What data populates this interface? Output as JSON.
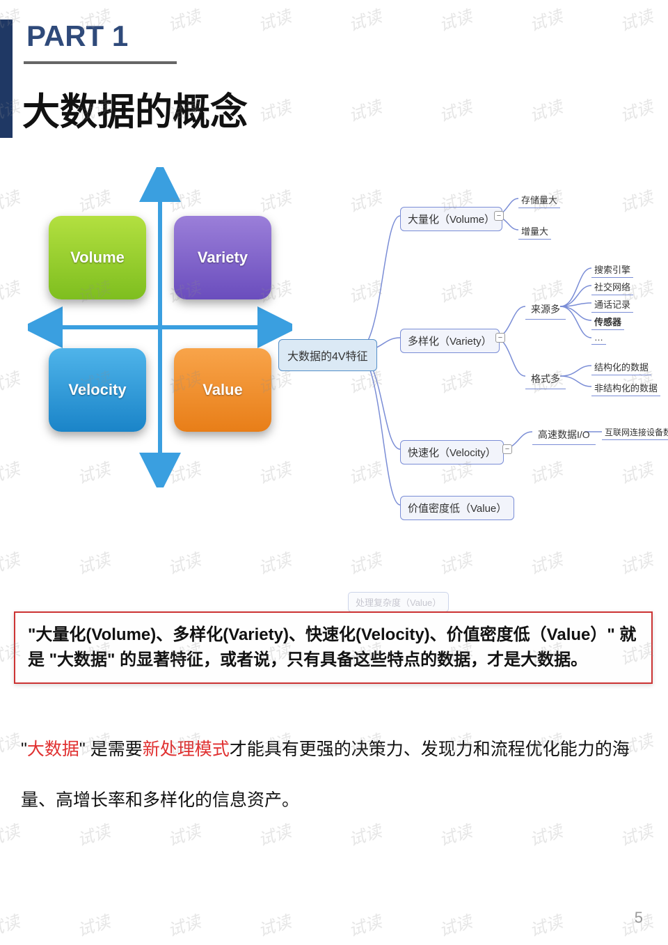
{
  "page": {
    "part_label": "PART 1",
    "title": "大数据的概念",
    "page_number": "5",
    "watermark_text": "试读",
    "colors": {
      "accent_bar": "#1f3864",
      "part_text": "#2f4a7a",
      "arrow": "#3a9fe0",
      "summary_border": "#cc3333",
      "red_text": "#e03030",
      "node_border": "#7a8dd6"
    }
  },
  "quadrant": {
    "boxes": {
      "top_left": {
        "label": "Volume",
        "color": "#7ebe1f"
      },
      "top_right": {
        "label": "Variety",
        "color": "#6a4dbd"
      },
      "bot_left": {
        "label": "Velocity",
        "color": "#1a84c8"
      },
      "bot_right": {
        "label": "Value",
        "color": "#e87e18"
      }
    }
  },
  "mindmap": {
    "root": "大数据的4V特征",
    "branches": [
      {
        "label": "大量化（Volume）",
        "children": [
          "存储量大",
          "增量大"
        ]
      },
      {
        "label": "多样化（Variety）",
        "sub": [
          {
            "label": "来源多",
            "children": [
              "搜索引擎",
              "社交网络",
              "通话记录",
              "传感器",
              "…"
            ]
          },
          {
            "label": "格式多",
            "children": [
              "结构化的数据",
              "非结构化的数据"
            ]
          }
        ]
      },
      {
        "label": "快速化（Velocity）",
        "sub": [
          {
            "label": "高速数据I/O",
            "children": [
              "互联网连接设备数量增长"
            ]
          }
        ]
      },
      {
        "label": "价值密度低（Value）",
        "children": []
      }
    ]
  },
  "ghost": "处理复杂度（Value）",
  "summary": "\"大量化(Volume)、多样化(Variety)、快速化(Velocity)、价值密度低（Value）\" 就是 \"大数据\" 的显著特征，或者说，只有具备这些特点的数据，才是大数据。",
  "definition": {
    "t1": "\"",
    "red1": "大数据",
    "t2": "\" 是需要",
    "red2": "新处理模式",
    "t3": "才能具有更强的决策力、发现力和流程优化能力的海量、高增长率和多样化的信息资产。"
  }
}
